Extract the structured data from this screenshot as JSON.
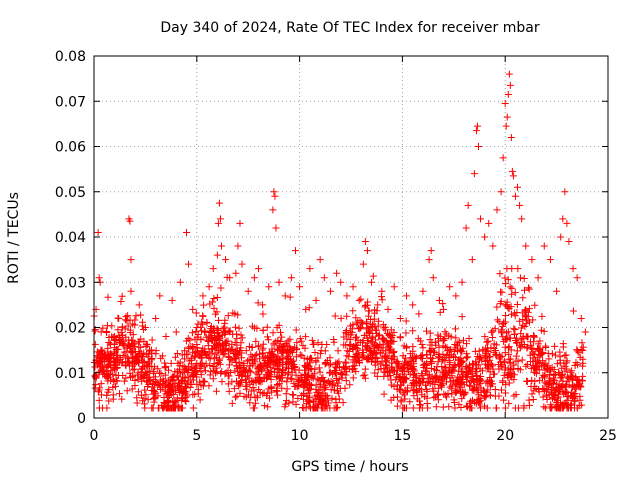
{
  "chart_data": {
    "type": "scatter",
    "title": "Day 340 of 2024, Rate Of TEC Index for receiver mbar",
    "xlabel": "GPS time / hours",
    "ylabel": "ROTI / TECUs",
    "xlim": [
      0,
      25
    ],
    "ylim": [
      0,
      0.08
    ],
    "xticks": [
      "0",
      "5",
      "10",
      "15",
      "20",
      "25"
    ],
    "yticks": [
      "0",
      "0.01",
      "0.02",
      "0.03",
      "0.04",
      "0.05",
      "0.06",
      "0.07",
      "0.08"
    ],
    "xtick_values": [
      0,
      5,
      10,
      15,
      20,
      25
    ],
    "ytick_values": [
      0,
      0.01,
      0.02,
      0.03,
      0.04,
      0.05,
      0.06,
      0.07,
      0.08
    ],
    "grid": true,
    "marker": "+",
    "color": "#ff0000",
    "series": [
      {
        "points": [
          [
            0.1,
            0.024
          ],
          [
            0.2,
            0.041
          ],
          [
            0.25,
            0.031
          ],
          [
            0.3,
            0.03
          ],
          [
            0.35,
            0.019
          ],
          [
            0.5,
            0.014
          ],
          [
            0.7,
            0.009
          ],
          [
            1.0,
            0.018
          ],
          [
            1.2,
            0.022
          ],
          [
            1.5,
            0.016
          ],
          [
            1.7,
            0.044
          ],
          [
            1.75,
            0.0435
          ],
          [
            1.8,
            0.035
          ],
          [
            1.8,
            0.028
          ],
          [
            2.0,
            0.012
          ],
          [
            2.2,
            0.025
          ],
          [
            2.5,
            0.02
          ],
          [
            2.7,
            0.015
          ],
          [
            3.0,
            0.022
          ],
          [
            3.2,
            0.027
          ],
          [
            3.5,
            0.018
          ],
          [
            3.8,
            0.026
          ],
          [
            4.0,
            0.019
          ],
          [
            4.2,
            0.03
          ],
          [
            4.5,
            0.041
          ],
          [
            4.6,
            0.034
          ],
          [
            4.8,
            0.024
          ],
          [
            5.0,
            0.02
          ],
          [
            5.3,
            0.027
          ],
          [
            5.6,
            0.029
          ],
          [
            5.8,
            0.033
          ],
          [
            6.0,
            0.036
          ],
          [
            6.05,
            0.043
          ],
          [
            6.1,
            0.0475
          ],
          [
            6.15,
            0.044
          ],
          [
            6.2,
            0.038
          ],
          [
            6.4,
            0.035
          ],
          [
            6.6,
            0.031
          ],
          [
            6.9,
            0.032
          ],
          [
            7.0,
            0.038
          ],
          [
            7.1,
            0.043
          ],
          [
            7.2,
            0.034
          ],
          [
            7.5,
            0.028
          ],
          [
            7.8,
            0.031
          ],
          [
            8.0,
            0.033
          ],
          [
            8.2,
            0.025
          ],
          [
            8.5,
            0.029
          ],
          [
            8.7,
            0.046
          ],
          [
            8.75,
            0.05
          ],
          [
            8.8,
            0.049
          ],
          [
            8.85,
            0.042
          ],
          [
            9.0,
            0.03
          ],
          [
            9.3,
            0.027
          ],
          [
            9.6,
            0.031
          ],
          [
            9.8,
            0.037
          ],
          [
            10.0,
            0.029
          ],
          [
            10.3,
            0.024
          ],
          [
            10.5,
            0.033
          ],
          [
            10.8,
            0.026
          ],
          [
            11.0,
            0.035
          ],
          [
            11.2,
            0.031
          ],
          [
            11.5,
            0.028
          ],
          [
            11.8,
            0.032
          ],
          [
            12.0,
            0.03
          ],
          [
            12.3,
            0.027
          ],
          [
            12.6,
            0.029
          ],
          [
            12.9,
            0.026
          ],
          [
            13.1,
            0.034
          ],
          [
            13.2,
            0.039
          ],
          [
            13.3,
            0.037
          ],
          [
            13.5,
            0.03
          ],
          [
            13.8,
            0.025
          ],
          [
            14.0,
            0.028
          ],
          [
            14.3,
            0.024
          ],
          [
            14.6,
            0.029
          ],
          [
            14.9,
            0.022
          ],
          [
            15.2,
            0.027
          ],
          [
            15.5,
            0.025
          ],
          [
            15.8,
            0.023
          ],
          [
            16.0,
            0.028
          ],
          [
            16.3,
            0.035
          ],
          [
            16.4,
            0.037
          ],
          [
            16.5,
            0.031
          ],
          [
            16.8,
            0.026
          ],
          [
            17.0,
            0.024
          ],
          [
            17.3,
            0.029
          ],
          [
            17.6,
            0.027
          ],
          [
            17.9,
            0.03
          ],
          [
            18.1,
            0.042
          ],
          [
            18.2,
            0.047
          ],
          [
            18.4,
            0.035
          ],
          [
            18.5,
            0.054
          ],
          [
            18.6,
            0.0635
          ],
          [
            18.65,
            0.0645
          ],
          [
            18.7,
            0.06
          ],
          [
            18.8,
            0.044
          ],
          [
            19.0,
            0.04
          ],
          [
            19.2,
            0.043
          ],
          [
            19.4,
            0.038
          ],
          [
            19.6,
            0.046
          ],
          [
            19.8,
            0.05
          ],
          [
            19.9,
            0.0575
          ],
          [
            20.0,
            0.0695
          ],
          [
            20.05,
            0.0645
          ],
          [
            20.1,
            0.0665
          ],
          [
            20.15,
            0.0715
          ],
          [
            20.2,
            0.076
          ],
          [
            20.25,
            0.0735
          ],
          [
            20.3,
            0.062
          ],
          [
            20.35,
            0.0545
          ],
          [
            20.4,
            0.0535
          ],
          [
            20.5,
            0.049
          ],
          [
            20.6,
            0.051
          ],
          [
            20.7,
            0.047
          ],
          [
            20.8,
            0.044
          ],
          [
            21.0,
            0.038
          ],
          [
            21.3,
            0.035
          ],
          [
            21.6,
            0.031
          ],
          [
            21.9,
            0.038
          ],
          [
            22.2,
            0.035
          ],
          [
            22.5,
            0.028
          ],
          [
            22.7,
            0.04
          ],
          [
            22.8,
            0.044
          ],
          [
            22.9,
            0.05
          ],
          [
            23.0,
            0.043
          ],
          [
            23.1,
            0.039
          ],
          [
            23.3,
            0.033
          ],
          [
            23.5,
            0.031
          ],
          [
            23.7,
            0.022
          ],
          [
            23.9,
            0.019
          ]
        ]
      }
    ]
  }
}
